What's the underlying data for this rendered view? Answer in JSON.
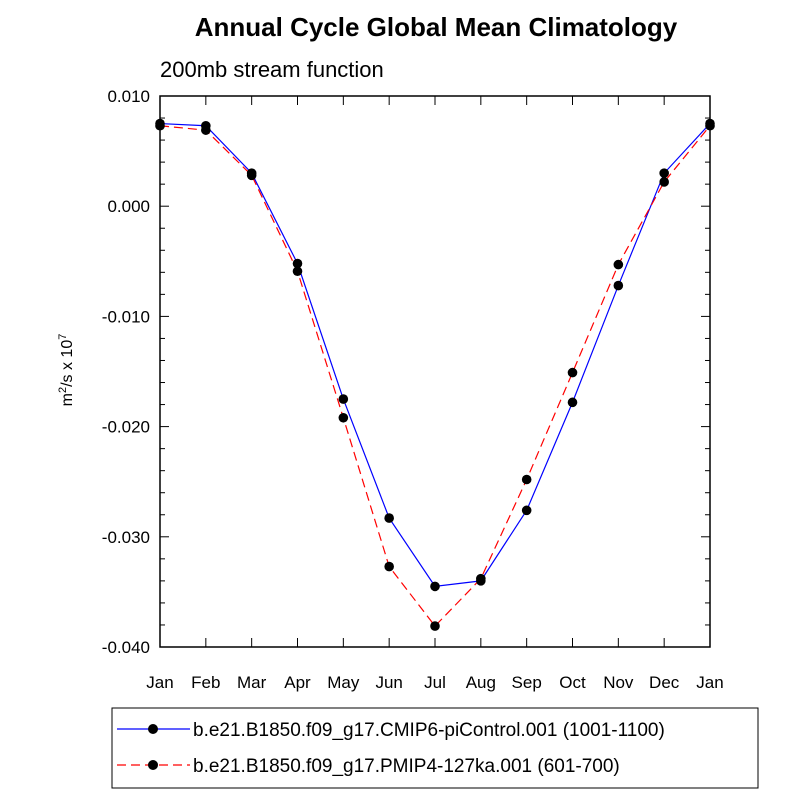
{
  "chart_data": {
    "type": "line",
    "title": "Annual Cycle Global Mean Climatology",
    "subtitle": "200mb stream function",
    "ylabel": {
      "base": "m",
      "sup1": "2",
      "mid": "/s x 10",
      "sup2": "7"
    },
    "xlabel": "",
    "categories": [
      "Jan",
      "Feb",
      "Mar",
      "Apr",
      "May",
      "Jun",
      "Jul",
      "Aug",
      "Sep",
      "Oct",
      "Nov",
      "Dec",
      "Jan"
    ],
    "ylim": [
      -0.04,
      0.01
    ],
    "yticks": [
      0.01,
      0.0,
      -0.01,
      -0.02,
      -0.03,
      -0.04
    ],
    "ytick_labels": [
      "0.010",
      "0.000",
      "-0.010",
      "-0.020",
      "-0.030",
      "-0.040"
    ],
    "series": [
      {
        "name": "b.e21.B1850.f09_g17.CMIP6-piControl.001 (1001-1100)",
        "color": "#0000ff",
        "dash": "solid",
        "values": [
          0.0075,
          0.0073,
          0.003,
          -0.0052,
          -0.0175,
          -0.0283,
          -0.0345,
          -0.034,
          -0.0276,
          -0.0178,
          -0.0072,
          0.003,
          0.0075
        ]
      },
      {
        "name": "b.e21.B1850.f09_g17.PMIP4-127ka.001 (601-700)",
        "color": "#ff0000",
        "dash": "dashed",
        "values": [
          0.0073,
          0.0069,
          0.0028,
          -0.0059,
          -0.0192,
          -0.0327,
          -0.0381,
          -0.0338,
          -0.0248,
          -0.0151,
          -0.0053,
          0.0022,
          0.0073
        ]
      }
    ],
    "legend_position": "bottom"
  }
}
